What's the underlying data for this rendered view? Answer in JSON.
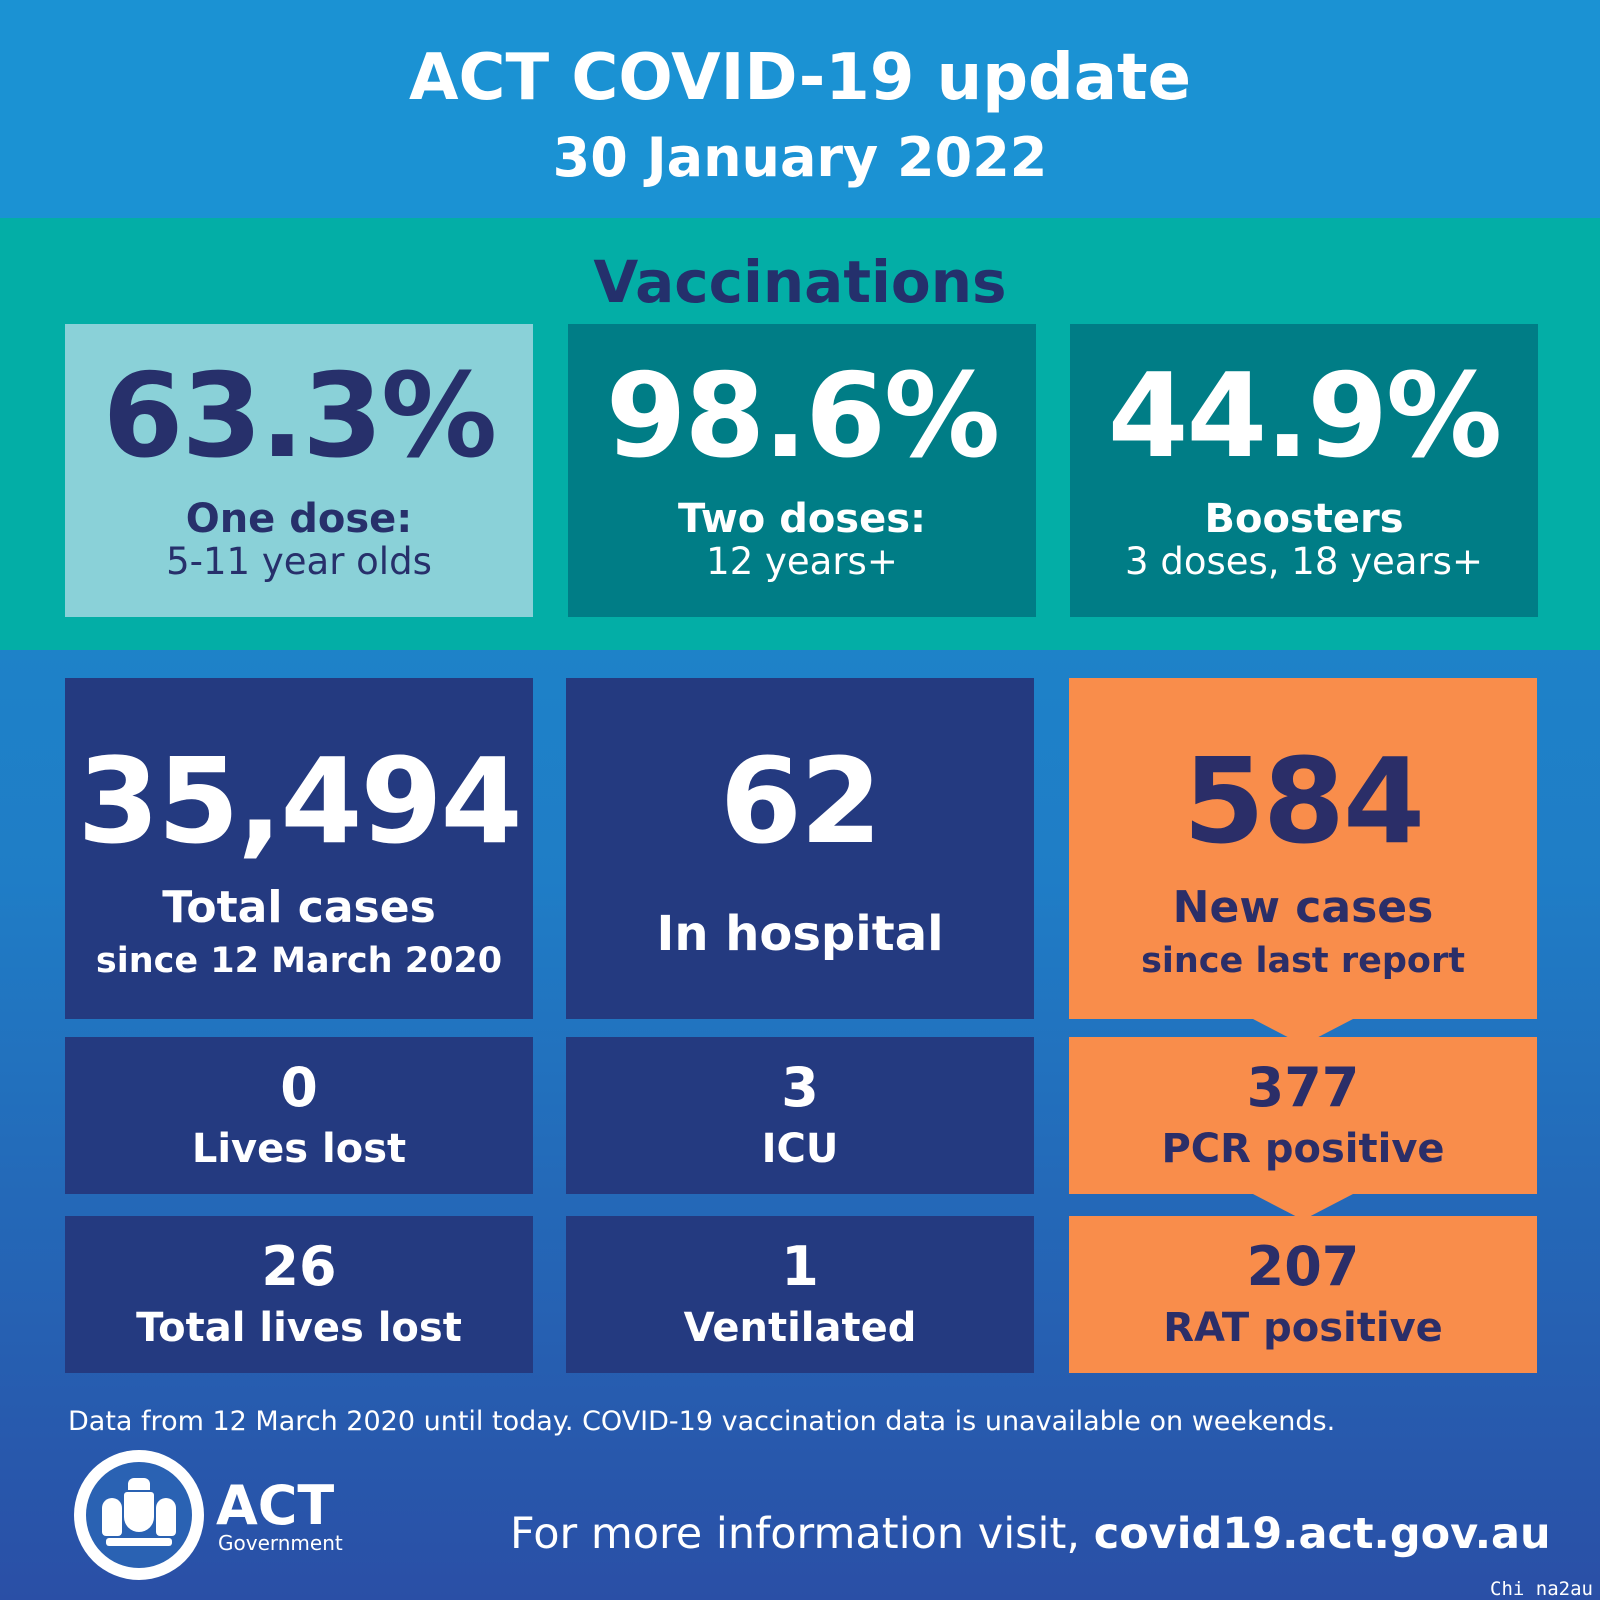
{
  "header": {
    "title": "ACT COVID-19 update",
    "date": "30 January 2022"
  },
  "vaccinations": {
    "title": "Vaccinations",
    "items": [
      {
        "value": "63.3%",
        "label1": "One dose:",
        "label2": "5-11 year olds"
      },
      {
        "value": "98.6%",
        "label1": "Two doses:",
        "label2": "12 years+"
      },
      {
        "value": "44.9%",
        "label1": "Boosters",
        "label2": "3 doses, 18 years+"
      }
    ]
  },
  "stats": {
    "total_cases": {
      "value": "35,494",
      "label1": "Total cases",
      "label2": "since 12 March 2020"
    },
    "in_hospital": {
      "value": "62",
      "label": "In hospital"
    },
    "new_cases": {
      "value": "584",
      "label1": "New cases",
      "label2": "since last report"
    },
    "lives_lost": {
      "value": "0",
      "label": "Lives lost"
    },
    "icu": {
      "value": "3",
      "label": "ICU"
    },
    "pcr_positive": {
      "value": "377",
      "label": "PCR positive"
    },
    "total_lives_lost": {
      "value": "26",
      "label": "Total lives lost"
    },
    "ventilated": {
      "value": "1",
      "label": "Ventilated"
    },
    "rat_positive": {
      "value": "207",
      "label": "RAT positive"
    }
  },
  "footnote": "Data from 12 March 2020 until today.  COVID-19 vaccination data is unavailable on weekends.",
  "logo": {
    "name": "ACT",
    "sub": "Government"
  },
  "visit": {
    "prefix": "For more information visit, ",
    "url": "covid19.act.gov.au"
  },
  "watermark": "Chi na2au",
  "colors": {
    "header_blue": "#1b92d3",
    "teal": "#03aea6",
    "navy": "#243a80",
    "orange": "#f98d4b",
    "dark_text": "#27306b"
  }
}
